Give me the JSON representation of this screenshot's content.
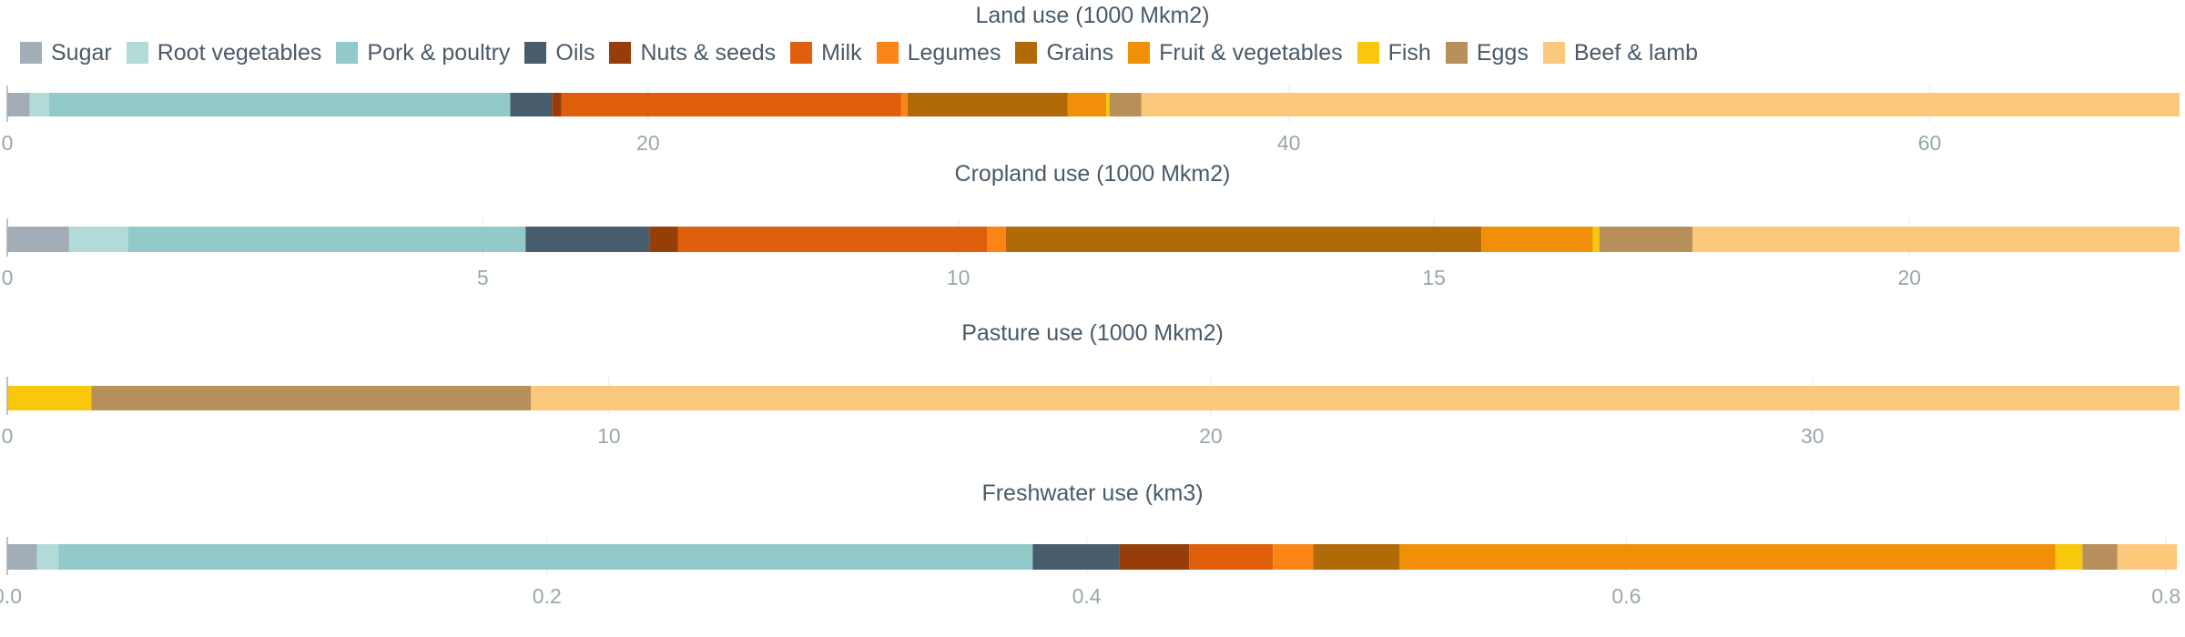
{
  "legend": [
    {
      "name": "Sugar",
      "color": "#a2adb8"
    },
    {
      "name": "Root vegetables",
      "color": "#b2dbd7"
    },
    {
      "name": "Pork & poultry",
      "color": "#93c9c8"
    },
    {
      "name": "Oils",
      "color": "#475c6d"
    },
    {
      "name": "Nuts & seeds",
      "color": "#973d07"
    },
    {
      "name": "Milk",
      "color": "#df5f0c"
    },
    {
      "name": "Legumes",
      "color": "#fa8516"
    },
    {
      "name": "Grains",
      "color": "#b06a07"
    },
    {
      "name": "Fruit & vegetables",
      "color": "#f18f08"
    },
    {
      "name": "Fish",
      "color": "#f9c70c"
    },
    {
      "name": "Eggs",
      "color": "#b8905b"
    },
    {
      "name": "Beef & lamb",
      "color": "#fbc87c"
    }
  ],
  "chart_data": [
    {
      "type": "bar",
      "orientation": "horizontal-stacked",
      "title": "Land use (1000 Mkm2)",
      "xlim": [
        0,
        67.8
      ],
      "ticks": [
        "0",
        "20",
        "40",
        "60"
      ],
      "tick_values": [
        0,
        20,
        40,
        60
      ],
      "grid": true,
      "series": [
        {
          "name": "Sugar",
          "value": 0.7
        },
        {
          "name": "Root vegetables",
          "value": 0.6
        },
        {
          "name": "Pork & poultry",
          "value": 14.4
        },
        {
          "name": "Oils",
          "value": 1.3
        },
        {
          "name": "Nuts & seeds",
          "value": 0.3
        },
        {
          "name": "Milk",
          "value": 10.6
        },
        {
          "name": "Legumes",
          "value": 0.2
        },
        {
          "name": "Grains",
          "value": 5.0
        },
        {
          "name": "Fruit & vegetables",
          "value": 1.2
        },
        {
          "name": "Fish",
          "value": 0.1
        },
        {
          "name": "Eggs",
          "value": 1.0
        },
        {
          "name": "Beef & lamb",
          "value": 32.4
        }
      ]
    },
    {
      "type": "bar",
      "orientation": "horizontal-stacked",
      "title": "Cropland use (1000 Mkm2)",
      "xlim": [
        0,
        22.84
      ],
      "ticks": [
        "0",
        "5",
        "10",
        "15",
        "20"
      ],
      "tick_values": [
        0,
        5,
        10,
        15,
        20
      ],
      "grid": true,
      "series": [
        {
          "name": "Sugar",
          "value": 0.65
        },
        {
          "name": "Root vegetables",
          "value": 0.62
        },
        {
          "name": "Pork & poultry",
          "value": 4.18
        },
        {
          "name": "Oils",
          "value": 1.3
        },
        {
          "name": "Nuts & seeds",
          "value": 0.3
        },
        {
          "name": "Milk",
          "value": 3.25
        },
        {
          "name": "Legumes",
          "value": 0.2
        },
        {
          "name": "Grains",
          "value": 5.0
        },
        {
          "name": "Fruit & vegetables",
          "value": 1.17
        },
        {
          "name": "Fish",
          "value": 0.07
        },
        {
          "name": "Eggs",
          "value": 0.98
        },
        {
          "name": "Beef & lamb",
          "value": 5.12
        }
      ]
    },
    {
      "type": "bar",
      "orientation": "horizontal-stacked",
      "title": "Pasture use (1000 Mkm2)",
      "xlim": [
        0,
        36.1
      ],
      "ticks": [
        "0",
        "10",
        "20",
        "30"
      ],
      "tick_values": [
        0,
        10,
        20,
        30
      ],
      "grid": true,
      "series": [
        {
          "name": "Fish",
          "value": 1.4
        },
        {
          "name": "Eggs",
          "value": 7.3
        },
        {
          "name": "Beef & lamb",
          "value": 27.4
        }
      ]
    },
    {
      "type": "bar",
      "orientation": "horizontal-stacked",
      "title": "Freshwater use (km3)",
      "xlim": [
        0,
        0.805
      ],
      "ticks": [
        "0.0",
        "0.2",
        "0.4",
        "0.6",
        "0.8"
      ],
      "tick_values": [
        0,
        0.2,
        0.4,
        0.6,
        0.8
      ],
      "grid": true,
      "series": [
        {
          "name": "Sugar",
          "value": 0.011
        },
        {
          "name": "Root vegetables",
          "value": 0.008
        },
        {
          "name": "Pork & poultry",
          "value": 0.361
        },
        {
          "name": "Oils",
          "value": 0.032
        },
        {
          "name": "Nuts & seeds",
          "value": 0.026
        },
        {
          "name": "Milk",
          "value": 0.031
        },
        {
          "name": "Legumes",
          "value": 0.015
        },
        {
          "name": "Grains",
          "value": 0.032
        },
        {
          "name": "Fruit & vegetables",
          "value": 0.243
        },
        {
          "name": "Fish",
          "value": 0.01
        },
        {
          "name": "Eggs",
          "value": 0.013
        },
        {
          "name": "Beef & lamb",
          "value": 0.022
        }
      ]
    }
  ]
}
